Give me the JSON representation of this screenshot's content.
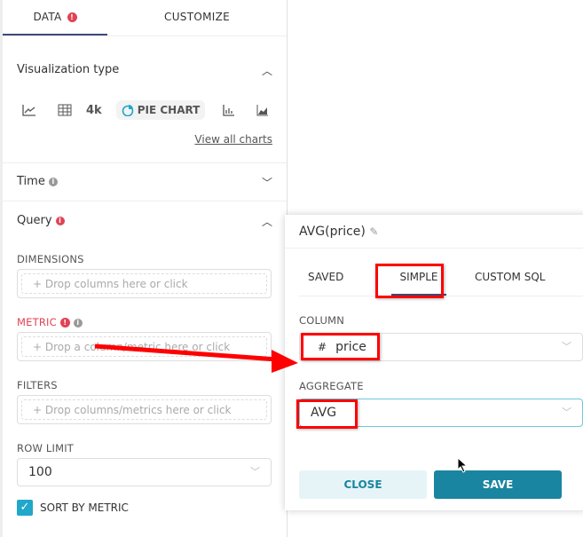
{
  "tabs": {
    "data": "DATA",
    "customize": "CUSTOMIZE"
  },
  "viz": {
    "title": "Visualization type",
    "big_number": "4k",
    "pie": "PIE CHART",
    "view_all": "View all charts"
  },
  "time": {
    "title": "Time"
  },
  "query": {
    "title": "Query",
    "dimensions": "DIMENSIONS",
    "dimensions_ph": "Drop columns here or click",
    "metric": "METRIC",
    "metric_ph": "Drop a column/metric here or click",
    "filters": "FILTERS",
    "filters_ph": "Drop columns/metrics here or click",
    "row_limit": "ROW LIMIT",
    "row_limit_value": "100",
    "sort_by_metric": "SORT BY METRIC",
    "sort_checked": true
  },
  "popover": {
    "title": "AVG(price)",
    "tabs": [
      "SAVED",
      "SIMPLE",
      "CUSTOM SQL"
    ],
    "active_tab": "SIMPLE",
    "column_label": "COLUMN",
    "column_type": "#",
    "column_value": "price",
    "aggregate_label": "AGGREGATE",
    "aggregate_value": "AVG",
    "close": "CLOSE",
    "save": "SAVE"
  },
  "colors": {
    "accent": "#1a85a0",
    "error": "#e04355",
    "annotation": "#ff0000"
  }
}
